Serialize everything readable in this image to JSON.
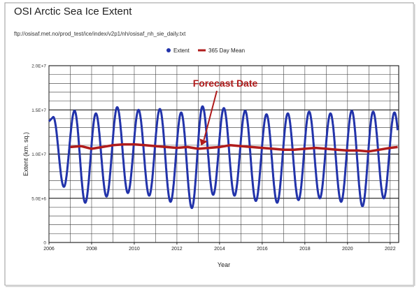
{
  "chart_data": {
    "type": "line",
    "title": "OSI Arctic Sea Ice Extent",
    "subtitle": "ftp://osisaf.met.no/prod_test/ice/index/v2p1/nh/osisaf_nh_sie_daily.txt",
    "xlabel": "Year",
    "ylabel": "Extent (km. sq.)",
    "xlim": [
      2006,
      2022.4
    ],
    "ylim": [
      0,
      20000000
    ],
    "x_ticks": [
      "2006",
      "2008",
      "2010",
      "2012",
      "2014",
      "2016",
      "2018",
      "2020",
      "2022"
    ],
    "y_ticks": [
      "0",
      "5.0E+6",
      "1.0E+7",
      "1.5E+7",
      "2.0E+7"
    ],
    "grid": true,
    "legend_position": "top",
    "annotation": {
      "text": "Forecast Date",
      "x": 2013.2,
      "y": 10800000
    },
    "series": [
      {
        "name": "Extent",
        "color": "#2233aa",
        "seasonal_cycle": {
          "start_year": 2006,
          "end_year": 2022.35,
          "annual_maximum": [
            14.2,
            14.9,
            14.6,
            15.3,
            15.0,
            15.1,
            14.7,
            15.4,
            15.2,
            14.9,
            14.5,
            14.6,
            14.8,
            14.6,
            14.9,
            14.8,
            14.7
          ],
          "annual_minimum": [
            6.3,
            4.5,
            5.2,
            5.6,
            5.3,
            4.6,
            3.9,
            5.4,
            5.3,
            4.7,
            4.5,
            4.8,
            5.0,
            4.6,
            4.1,
            5.0
          ],
          "unit": "million km²"
        }
      },
      {
        "name": "365 Day Mean",
        "color": "#b01c1c",
        "x": [
          2007.0,
          2007.5,
          2008.0,
          2008.5,
          2009.0,
          2009.5,
          2010.0,
          2010.5,
          2011.0,
          2011.5,
          2012.0,
          2012.5,
          2013.0,
          2013.5,
          2014.0,
          2014.5,
          2015.0,
          2015.5,
          2016.0,
          2016.5,
          2017.0,
          2017.5,
          2018.0,
          2018.5,
          2019.0,
          2019.5,
          2020.0,
          2020.5,
          2021.0,
          2021.5,
          2022.0,
          2022.35
        ],
        "y": [
          10800000,
          10900000,
          10600000,
          10800000,
          11000000,
          11100000,
          11100000,
          11000000,
          10900000,
          10800000,
          10700000,
          10800000,
          10600000,
          10700000,
          10800000,
          11000000,
          10900000,
          10800000,
          10700000,
          10600000,
          10500000,
          10500000,
          10600000,
          10700000,
          10600000,
          10500000,
          10400000,
          10400000,
          10300000,
          10500000,
          10700000,
          10800000
        ]
      }
    ]
  }
}
